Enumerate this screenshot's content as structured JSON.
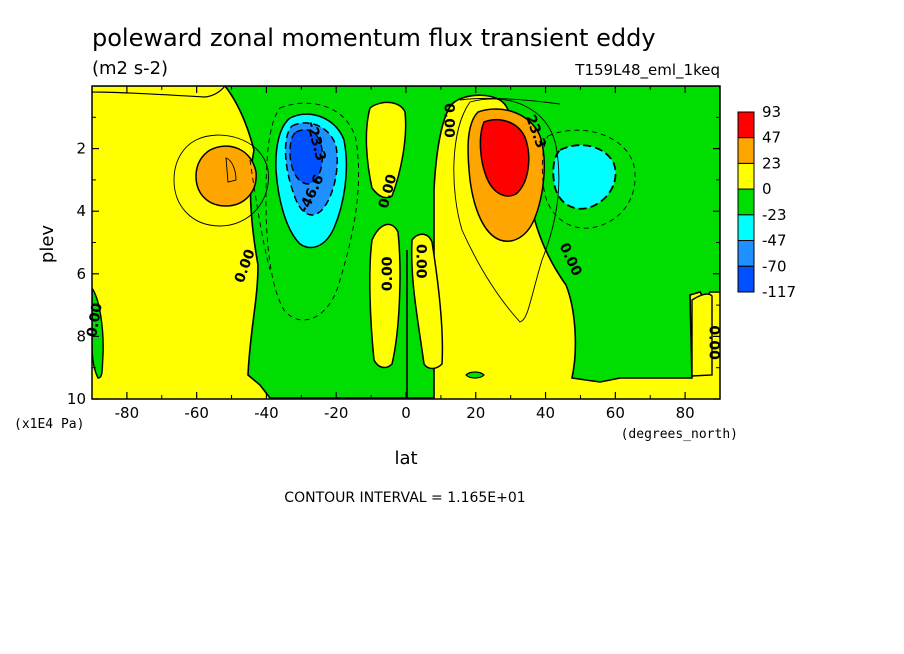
{
  "title": "poleward zonal momentum flux transient eddy",
  "units": "(m2 s-2)",
  "run_label": "T159L48_eml_1keq",
  "contour_interval_text": "CONTOUR INTERVAL = 1.165E+01",
  "chart_data": {
    "type": "heatmap",
    "xlabel": "lat",
    "ylabel": "plev",
    "x_units": "(degrees_north)",
    "y_units": "(x1E4 Pa)",
    "xlim": [
      -90,
      90
    ],
    "ylim": [
      0,
      10
    ],
    "y_inverted": true,
    "x_ticks": [
      -80,
      -60,
      -40,
      -20,
      0,
      20,
      40,
      60,
      80
    ],
    "y_ticks": [
      2,
      4,
      6,
      8,
      10
    ],
    "colorbar": {
      "levels": [
        "93",
        "47",
        "23",
        "0",
        "-23",
        "-47",
        "-70",
        "-117"
      ],
      "colors": [
        "#ff0000",
        "#ffa500",
        "#ffff00",
        "#00dd00",
        "#00ffff",
        "#1e90ff",
        "#0050ff"
      ]
    },
    "contour_labels": [
      {
        "text": "-23.3",
        "lat": -27,
        "plev": 1.8,
        "angle": 75
      },
      {
        "text": "-46.6",
        "lat": -26,
        "plev": 3.5,
        "angle": -65
      },
      {
        "text": "0.00",
        "lat": -45,
        "plev": 5.8,
        "angle": -70
      },
      {
        "text": "0.00",
        "lat": -88,
        "plev": 7.5,
        "angle": -80
      },
      {
        "text": "0.00",
        "lat": -4,
        "plev": 3.4,
        "angle": -75
      },
      {
        "text": "0.00",
        "lat": -4,
        "plev": 6.0,
        "angle": -90
      },
      {
        "text": "0.00",
        "lat": 3,
        "plev": 5.6,
        "angle": 90
      },
      {
        "text": "0.00",
        "lat": 11,
        "plev": 1.1,
        "angle": 90
      },
      {
        "text": "23.3",
        "lat": 36,
        "plev": 1.5,
        "angle": 70
      },
      {
        "text": "0.00",
        "lat": 46,
        "plev": 5.6,
        "angle": 65
      },
      {
        "text": "0.00",
        "lat": 87,
        "plev": 8.2,
        "angle": 90
      }
    ]
  }
}
